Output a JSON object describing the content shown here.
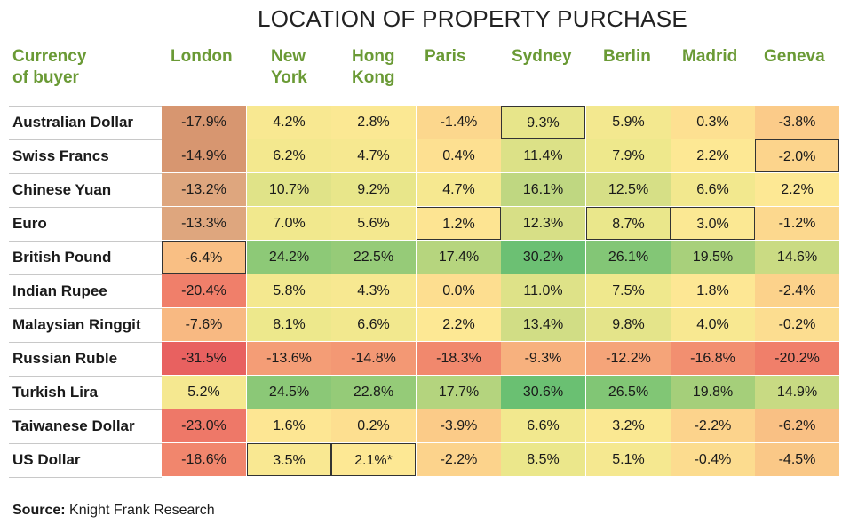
{
  "title": "LOCATION OF PROPERTY PURCHASE",
  "row_header": [
    "Currency",
    "of buyer"
  ],
  "columns": [
    {
      "lines": [
        "London"
      ]
    },
    {
      "lines": [
        "New",
        "York"
      ]
    },
    {
      "lines": [
        "Hong",
        "Kong"
      ]
    },
    {
      "lines": [
        "Paris"
      ]
    },
    {
      "lines": [
        "Sydney"
      ]
    },
    {
      "lines": [
        "Berlin"
      ]
    },
    {
      "lines": [
        "Madrid"
      ]
    },
    {
      "lines": [
        "Geneva"
      ]
    }
  ],
  "source_label": "Source:",
  "source_text": "Knight Frank Research",
  "chart_data": {
    "type": "heatmap",
    "title": "LOCATION OF PROPERTY PURCHASE",
    "x": [
      "London",
      "New York",
      "Hong Kong",
      "Paris",
      "Sydney",
      "Berlin",
      "Madrid",
      "Geneva"
    ],
    "y": [
      "Australian Dollar",
      "Swiss Francs",
      "Chinese Yuan",
      "Euro",
      "British Pound",
      "Indian Rupee",
      "Malaysian Ringgit",
      "Russian Ruble",
      "Turkish Lira",
      "Taiwanese Dollar",
      "US Dollar"
    ],
    "values": [
      [
        -17.9,
        4.2,
        2.8,
        -1.4,
        9.3,
        5.9,
        0.3,
        -3.8
      ],
      [
        -14.9,
        6.2,
        4.7,
        0.4,
        11.4,
        7.9,
        2.2,
        -2.0
      ],
      [
        -13.2,
        10.7,
        9.2,
        4.7,
        16.1,
        12.5,
        6.6,
        2.2
      ],
      [
        -13.3,
        7.0,
        5.6,
        1.2,
        12.3,
        8.7,
        3.0,
        -1.2
      ],
      [
        -6.4,
        24.2,
        22.5,
        17.4,
        30.2,
        26.1,
        19.5,
        14.6
      ],
      [
        -20.4,
        5.8,
        4.3,
        0.0,
        11.0,
        7.5,
        1.8,
        -2.4
      ],
      [
        -7.6,
        8.1,
        6.6,
        2.2,
        13.4,
        9.8,
        4.0,
        -0.2
      ],
      [
        -31.5,
        -13.6,
        -14.8,
        -18.3,
        -9.3,
        -12.2,
        -16.8,
        -20.2
      ],
      [
        5.2,
        24.5,
        22.8,
        17.7,
        30.6,
        26.5,
        19.8,
        14.9
      ],
      [
        -23.0,
        1.6,
        0.2,
        -3.9,
        6.6,
        3.2,
        -2.2,
        -6.2
      ],
      [
        -18.6,
        3.5,
        2.1,
        -2.2,
        8.5,
        5.1,
        -0.4,
        -4.5
      ]
    ],
    "labels": [
      [
        "-17.9%",
        "4.2%",
        "2.8%",
        "-1.4%",
        "9.3%",
        "5.9%",
        "0.3%",
        "-3.8%"
      ],
      [
        "-14.9%",
        "6.2%",
        "4.7%",
        "0.4%",
        "11.4%",
        "7.9%",
        "2.2%",
        "-2.0%"
      ],
      [
        "-13.2%",
        "10.7%",
        "9.2%",
        "4.7%",
        "16.1%",
        "12.5%",
        "6.6%",
        "2.2%"
      ],
      [
        "-13.3%",
        "7.0%",
        "5.6%",
        "1.2%",
        "12.3%",
        "8.7%",
        "3.0%",
        "-1.2%"
      ],
      [
        "-6.4%",
        "24.2%",
        "22.5%",
        "17.4%",
        "30.2%",
        "26.1%",
        "19.5%",
        "14.6%"
      ],
      [
        "-20.4%",
        "5.8%",
        "4.3%",
        "0.0%",
        "11.0%",
        "7.5%",
        "1.8%",
        "-2.4%"
      ],
      [
        "-7.6%",
        "8.1%",
        "6.6%",
        "2.2%",
        "13.4%",
        "9.8%",
        "4.0%",
        "-0.2%"
      ],
      [
        "-31.5%",
        "-13.6%",
        "-14.8%",
        "-18.3%",
        "-9.3%",
        "-12.2%",
        "-16.8%",
        "-20.2%"
      ],
      [
        "5.2%",
        "24.5%",
        "22.8%",
        "17.7%",
        "30.6%",
        "26.5%",
        "19.8%",
        "14.9%"
      ],
      [
        "-23.0%",
        "1.6%",
        "0.2%",
        "-3.9%",
        "6.6%",
        "3.2%",
        "-2.2%",
        "-6.2%"
      ],
      [
        "-18.6%",
        "3.5%",
        "2.1%*",
        "-2.2%",
        "8.5%",
        "5.1%",
        "-0.4%",
        "-4.5%"
      ]
    ],
    "london_shaded_rows": [
      0,
      1,
      2,
      3
    ],
    "boxed_cells": [
      [
        0,
        4
      ],
      [
        1,
        7
      ],
      [
        3,
        3
      ],
      [
        3,
        5
      ],
      [
        3,
        6
      ],
      [
        4,
        0
      ],
      [
        10,
        1
      ],
      [
        10,
        2
      ]
    ]
  }
}
